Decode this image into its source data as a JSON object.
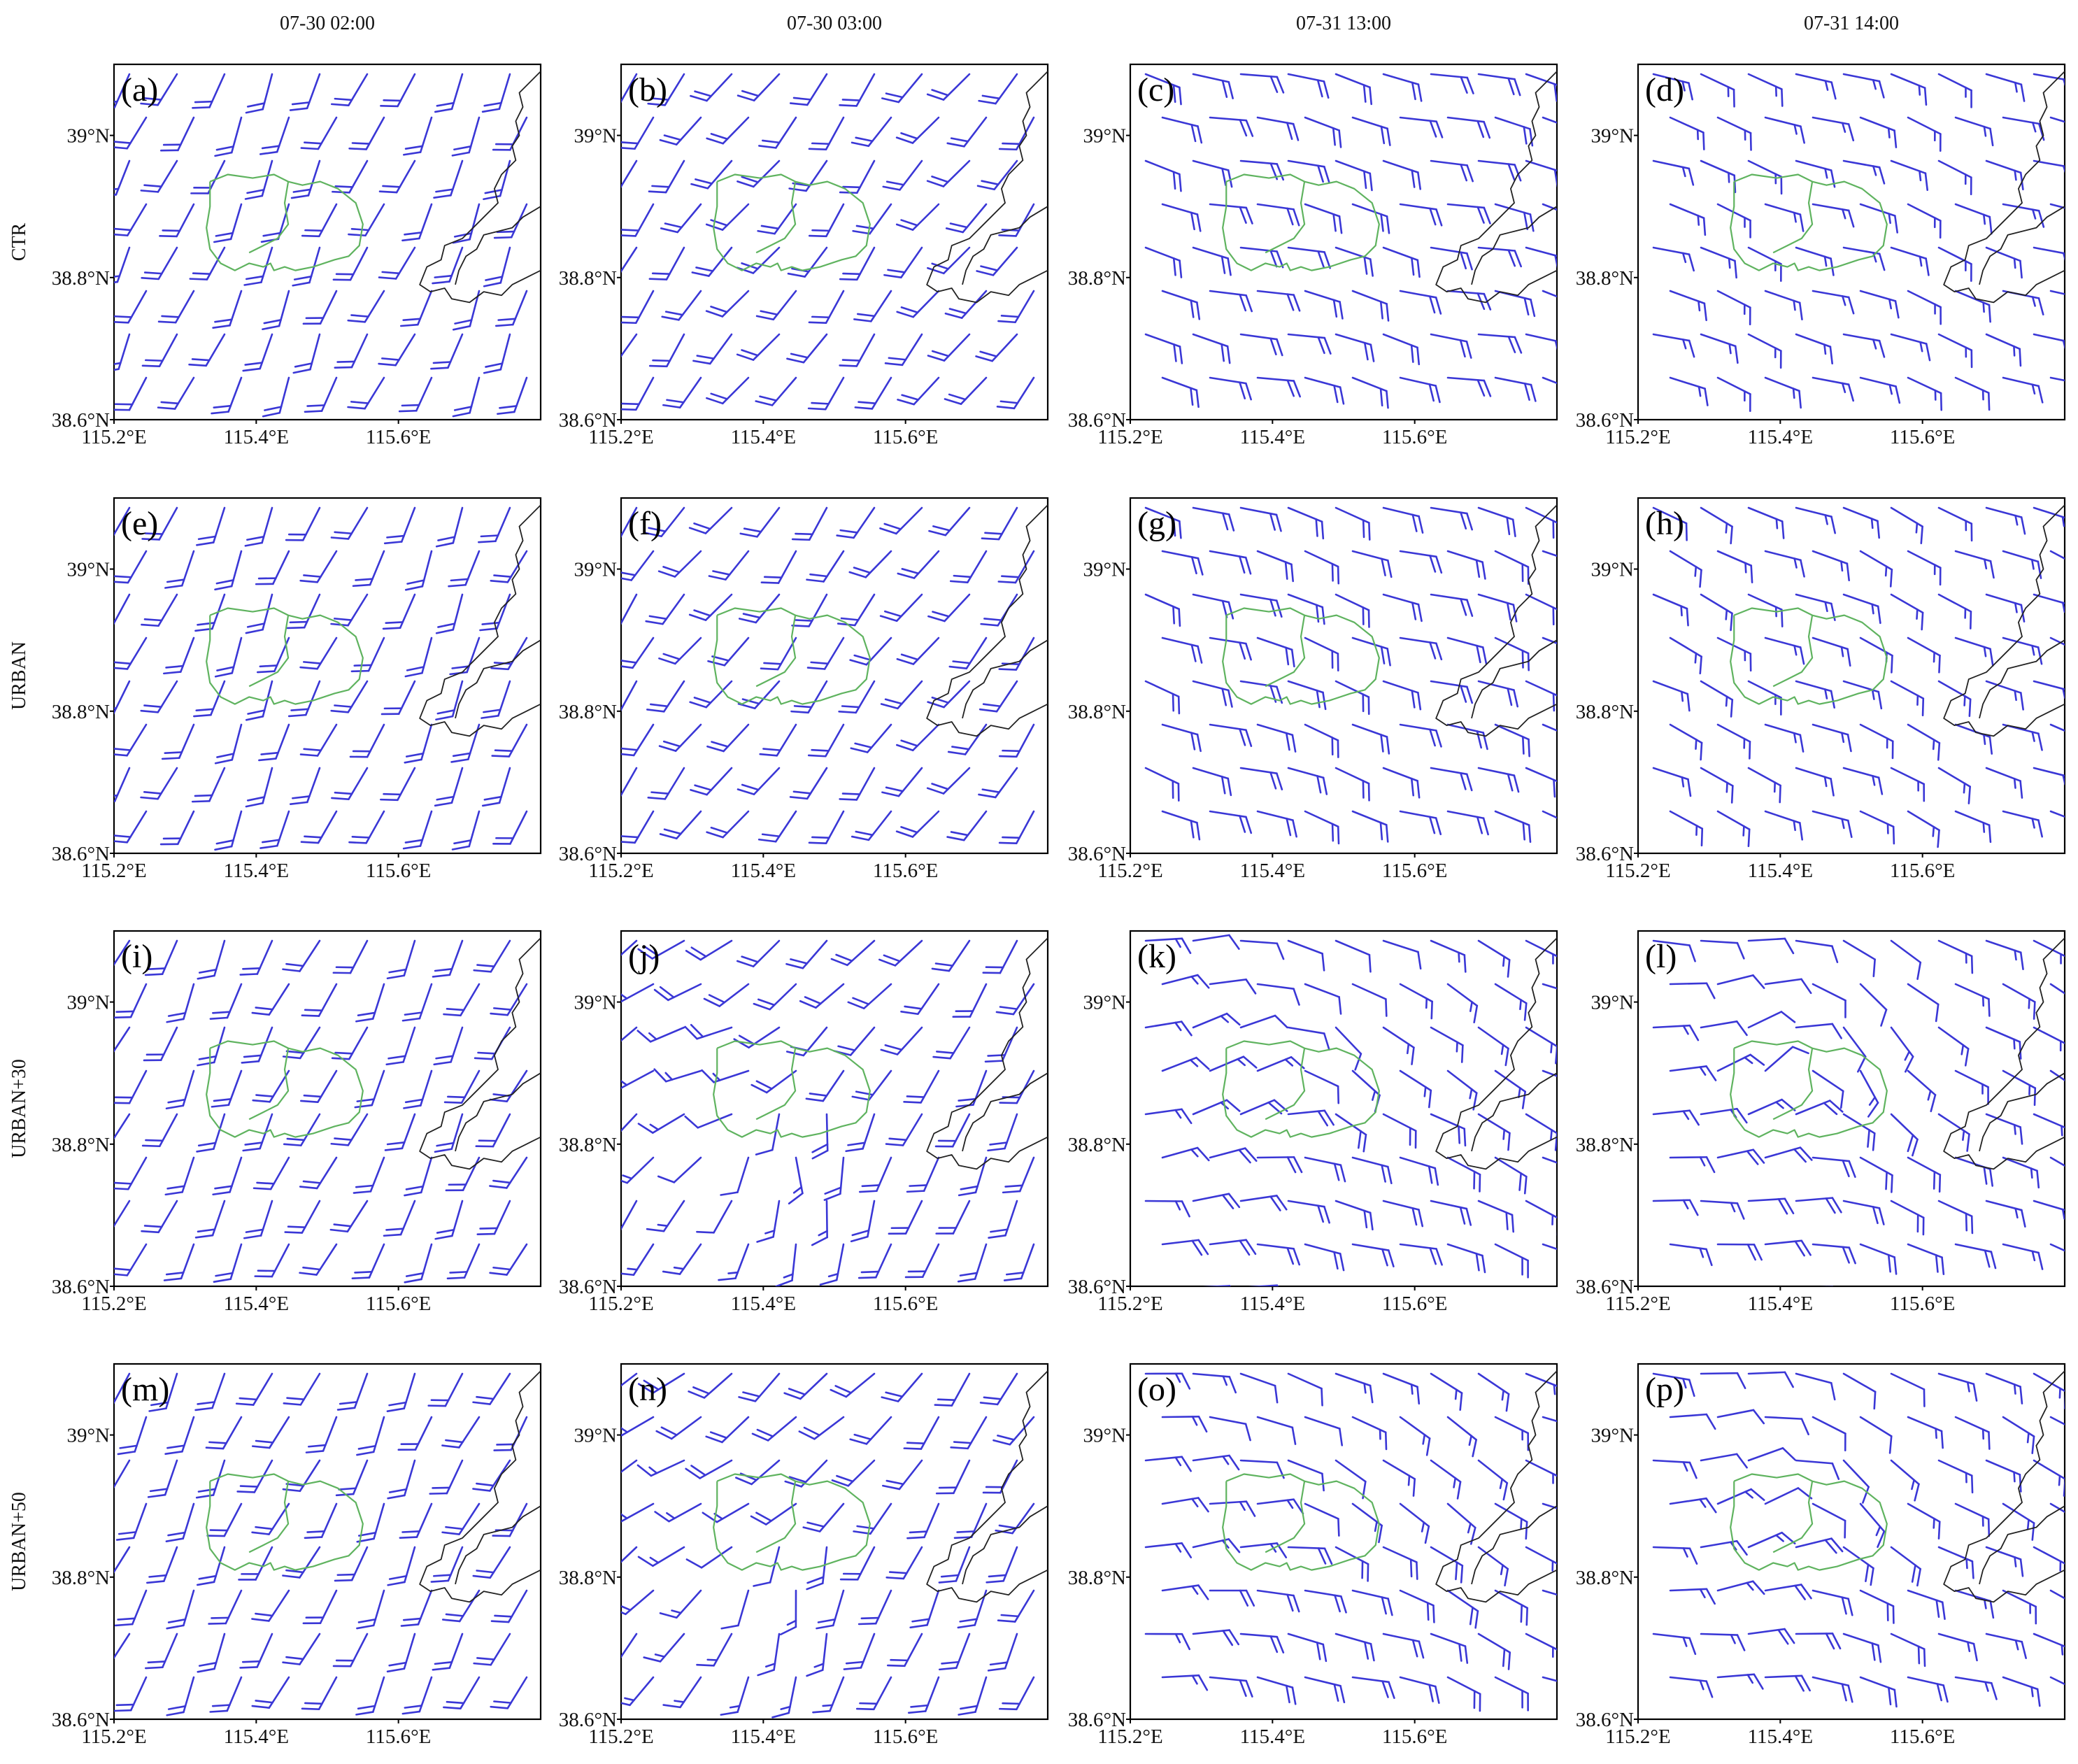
{
  "figure": {
    "column_titles": [
      "07-30 02:00",
      "07-30 03:00",
      "07-31 13:00",
      "07-31 14:00"
    ],
    "row_labels": [
      "CTR",
      "URBAN",
      "URBAN+30",
      "URBAN+50"
    ],
    "panel_tags": [
      "(a)",
      "(b)",
      "(c)",
      "(d)",
      "(e)",
      "(f)",
      "(g)",
      "(h)",
      "(i)",
      "(j)",
      "(k)",
      "(l)",
      "(m)",
      "(n)",
      "(o)",
      "(p)"
    ],
    "lon_ticks": [
      {
        "value": 115.2,
        "label": "115.2°E"
      },
      {
        "value": 115.4,
        "label": "115.4°E"
      },
      {
        "value": 115.6,
        "label": "115.6°E"
      }
    ],
    "lat_ticks": [
      {
        "value": 38.6,
        "label": "38.6°N"
      },
      {
        "value": 38.8,
        "label": "38.8°N"
      },
      {
        "value": 39.0,
        "label": "39°N"
      }
    ],
    "extent": {
      "lon_min": 115.2,
      "lon_max": 115.8,
      "lat_min": 38.6,
      "lat_max": 39.1
    }
  },
  "colors": {
    "wind_barb": "#3a37d6",
    "urban_outline": "#5fb35f",
    "admin_border": "#222222"
  },
  "map_layers": {
    "urban_area_outline": [
      [
        115.335,
        38.935
      ],
      [
        115.36,
        38.945
      ],
      [
        115.395,
        38.94
      ],
      [
        115.425,
        38.945
      ],
      [
        115.445,
        38.935
      ],
      [
        115.465,
        38.93
      ],
      [
        115.49,
        38.935
      ],
      [
        115.515,
        38.925
      ],
      [
        115.54,
        38.905
      ],
      [
        115.55,
        38.875
      ],
      [
        115.545,
        38.845
      ],
      [
        115.53,
        38.83
      ],
      [
        115.51,
        38.825
      ],
      [
        115.48,
        38.815
      ],
      [
        115.455,
        38.81
      ],
      [
        115.44,
        38.815
      ],
      [
        115.425,
        38.81
      ],
      [
        115.42,
        38.82
      ],
      [
        115.41,
        38.815
      ],
      [
        115.39,
        38.82
      ],
      [
        115.37,
        38.81
      ],
      [
        115.35,
        38.82
      ],
      [
        115.335,
        38.84
      ],
      [
        115.33,
        38.87
      ],
      [
        115.335,
        38.9
      ],
      [
        115.335,
        38.935
      ]
    ],
    "urban_inner_divider": [
      [
        115.445,
        38.935
      ],
      [
        115.44,
        38.905
      ],
      [
        115.445,
        38.875
      ],
      [
        115.43,
        38.855
      ],
      [
        115.41,
        38.845
      ],
      [
        115.39,
        38.835
      ]
    ],
    "admin_border": [
      [
        115.8,
        39.09
      ],
      [
        115.78,
        39.07
      ],
      [
        115.77,
        39.06
      ],
      [
        115.775,
        39.04
      ],
      [
        115.765,
        39.02
      ],
      [
        115.77,
        39.0
      ],
      [
        115.76,
        38.985
      ],
      [
        115.765,
        38.965
      ],
      [
        115.745,
        38.945
      ],
      [
        115.735,
        38.925
      ],
      [
        115.74,
        38.905
      ],
      [
        115.72,
        38.885
      ],
      [
        115.705,
        38.87
      ],
      [
        115.69,
        38.855
      ],
      [
        115.665,
        38.845
      ],
      [
        115.66,
        38.825
      ],
      [
        115.64,
        38.815
      ],
      [
        115.63,
        38.79
      ],
      [
        115.645,
        38.78
      ],
      [
        115.665,
        38.785
      ],
      [
        115.675,
        38.77
      ],
      [
        115.7,
        38.765
      ],
      [
        115.72,
        38.78
      ],
      [
        115.745,
        38.775
      ],
      [
        115.76,
        38.79
      ],
      [
        115.78,
        38.8
      ],
      [
        115.8,
        38.81
      ]
    ],
    "admin_border_branch": [
      [
        115.8,
        38.9
      ],
      [
        115.775,
        38.885
      ],
      [
        115.76,
        38.87
      ],
      [
        115.74,
        38.865
      ],
      [
        115.72,
        38.86
      ],
      [
        115.71,
        38.84
      ],
      [
        115.695,
        38.83
      ],
      [
        115.685,
        38.81
      ],
      [
        115.68,
        38.79
      ]
    ],
    "wind_panels": [
      {
        "u": 3.0,
        "v": 7.0,
        "curl": 0.0
      },
      {
        "u": 4.5,
        "v": 6.0,
        "curl": 0.0
      },
      {
        "u": -6.5,
        "v": 1.5,
        "curl": 0.0
      },
      {
        "u": -6.0,
        "v": 2.0,
        "curl": 0.0
      },
      {
        "u": 3.0,
        "v": 7.0,
        "curl": 0.0
      },
      {
        "u": 4.5,
        "v": 6.0,
        "curl": 0.0
      },
      {
        "u": -6.5,
        "v": 2.0,
        "curl": 0.0
      },
      {
        "u": -6.0,
        "v": 2.5,
        "curl": 0.0
      },
      {
        "u": 3.0,
        "v": 6.5,
        "curl": 0.0
      },
      {
        "u": 4.0,
        "v": 5.5,
        "curl": 3.0
      },
      {
        "u": -5.5,
        "v": 1.0,
        "curl": 2.5
      },
      {
        "u": -5.0,
        "v": 1.0,
        "curl": 2.5
      },
      {
        "u": 3.0,
        "v": 6.5,
        "curl": 0.0
      },
      {
        "u": 4.0,
        "v": 5.5,
        "curl": 2.5
      },
      {
        "u": -5.5,
        "v": 1.5,
        "curl": 2.0
      },
      {
        "u": -5.0,
        "v": 1.0,
        "curl": 2.0
      }
    ]
  }
}
